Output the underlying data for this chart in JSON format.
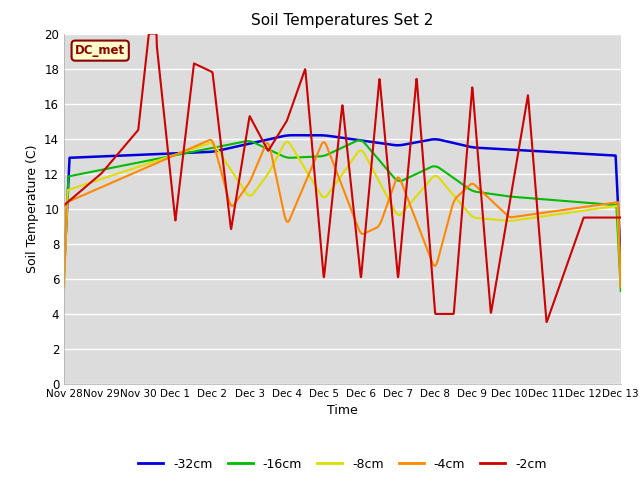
{
  "title": "Soil Temperatures Set 2",
  "xlabel": "Time",
  "ylabel": "Soil Temperature (C)",
  "ylim": [
    0,
    20
  ],
  "xlim": [
    0,
    15
  ],
  "plot_bg": "#dcdcdc",
  "fig_bg": "#ffffff",
  "grid_color": "#ffffff",
  "legend_label": "DC_met",
  "series_order": [
    "-32cm",
    "-16cm",
    "-8cm",
    "-4cm",
    "-2cm"
  ],
  "series": {
    "-32cm": {
      "color": "#0000dd",
      "linewidth": 1.8
    },
    "-16cm": {
      "color": "#00bb00",
      "linewidth": 1.5
    },
    "-8cm": {
      "color": "#dddd00",
      "linewidth": 1.5
    },
    "-4cm": {
      "color": "#ff8800",
      "linewidth": 1.5
    },
    "-2cm": {
      "color": "#cc0000",
      "linewidth": 1.5
    }
  },
  "xtick_labels": [
    "Nov 28",
    "Nov 29",
    "Nov 30",
    "Dec 1",
    "Dec 2",
    "Dec 3",
    "Dec 4",
    "Dec 5",
    "Dec 6",
    "Dec 7",
    "Dec 8",
    "Dec 9",
    "Dec 10",
    "Dec 11",
    "Dec 12",
    "Dec 13"
  ],
  "xtick_positions": [
    0,
    1,
    2,
    3,
    4,
    5,
    6,
    7,
    8,
    9,
    10,
    11,
    12,
    13,
    14,
    15
  ],
  "ytick_labels": [
    "0",
    "2",
    "4",
    "6",
    "8",
    "10",
    "12",
    "14",
    "16",
    "18",
    "20"
  ],
  "ytick_positions": [
    0,
    2,
    4,
    6,
    8,
    10,
    12,
    14,
    16,
    18,
    20
  ]
}
